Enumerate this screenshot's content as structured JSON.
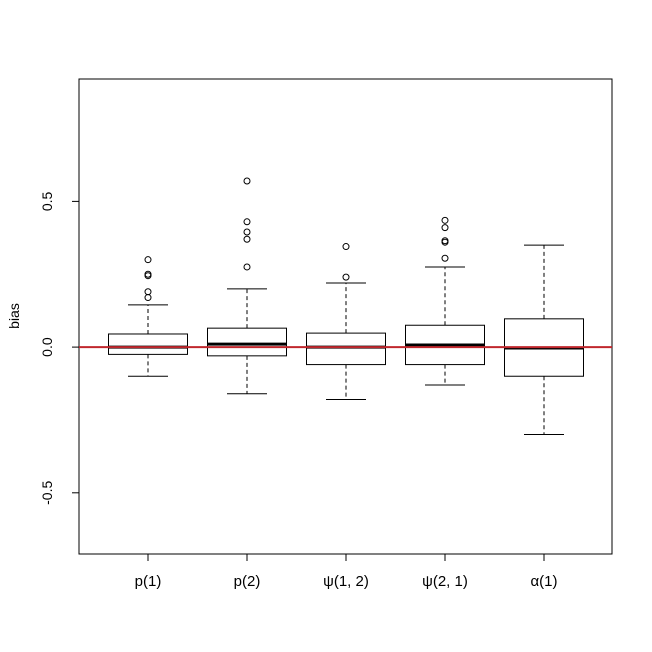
{
  "chart_data": {
    "type": "box",
    "title": "",
    "xlabel": "",
    "ylabel": "bias",
    "ylim": [
      -0.71,
      0.92
    ],
    "yticks": [
      -0.5,
      0.0,
      0.5
    ],
    "ytick_labels": [
      "-0.5",
      "0.0",
      "0.5"
    ],
    "categories": [
      "p(1)",
      "p(2)",
      "ψ(1, 2)",
      "ψ(2, 1)",
      "α(1)"
    ],
    "boxes": [
      {
        "label": "p(1)",
        "whisker_low": -0.1,
        "q1": -0.025,
        "median": 0.0,
        "q3": 0.045,
        "whisker_high": 0.145,
        "outliers": [
          0.17,
          0.19,
          0.245,
          0.25,
          0.3
        ]
      },
      {
        "label": "p(2)",
        "whisker_low": -0.16,
        "q1": -0.03,
        "median": 0.01,
        "q3": 0.065,
        "whisker_high": 0.2,
        "outliers": [
          0.275,
          0.37,
          0.395,
          0.43,
          0.57
        ]
      },
      {
        "label": "ψ(1, 2)",
        "whisker_low": -0.18,
        "q1": -0.06,
        "median": 0.0,
        "q3": 0.048,
        "whisker_high": 0.22,
        "outliers": [
          0.24,
          0.345
        ]
      },
      {
        "label": "ψ(2, 1)",
        "whisker_low": -0.13,
        "q1": -0.06,
        "median": 0.007,
        "q3": 0.075,
        "whisker_high": 0.275,
        "outliers": [
          0.305,
          0.36,
          0.365,
          0.41,
          0.435
        ]
      },
      {
        "label": "α(1)",
        "whisker_low": -0.3,
        "q1": -0.1,
        "median": -0.003,
        "q3": 0.097,
        "whisker_high": 0.35,
        "outliers": []
      }
    ],
    "reference_line": {
      "y": 0.0,
      "color": "#c0272d"
    },
    "colors": {
      "box_stroke": "#000000",
      "median": "#000000",
      "axis": "#000000"
    }
  }
}
